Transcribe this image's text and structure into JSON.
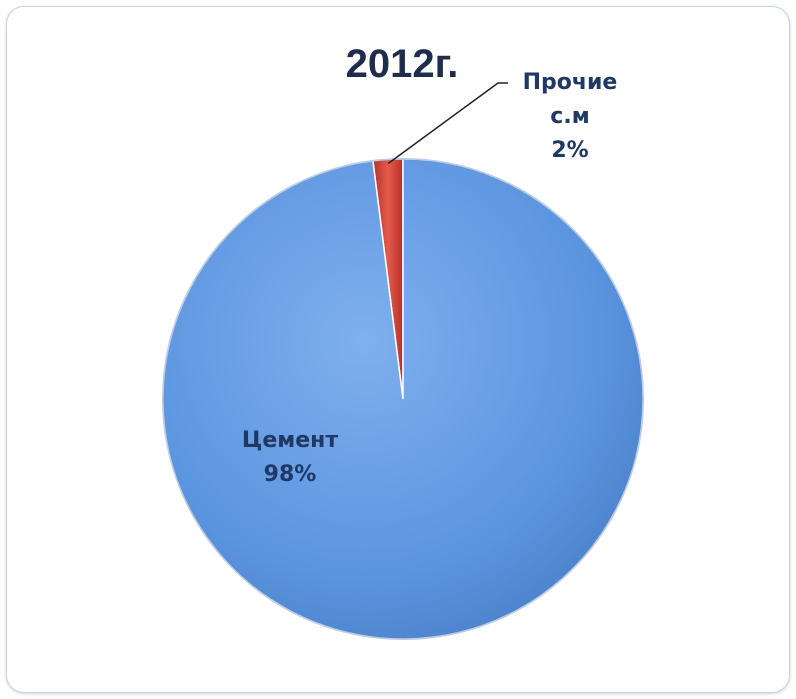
{
  "chart_data": {
    "type": "pie",
    "title": "2012г.",
    "slices": [
      {
        "label_lines": [
          "Прочие",
          "с.м"
        ],
        "value": 2,
        "value_label": "2%",
        "color": "#d9463a"
      },
      {
        "label_lines": [
          "Цемент"
        ],
        "value": 98,
        "value_label": "98%",
        "color": "#5b94df"
      }
    ],
    "start": "top",
    "direction": "counterclockwise",
    "legend": "none",
    "data_labels": "name-and-percent"
  }
}
